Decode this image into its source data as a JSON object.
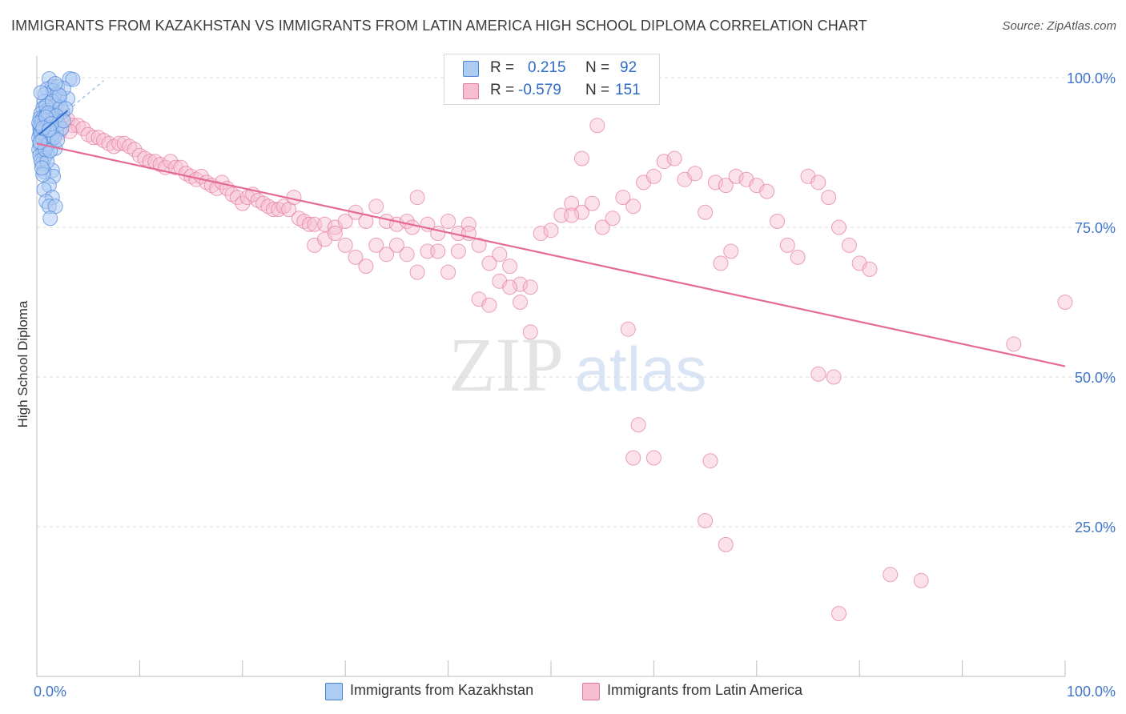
{
  "header": {
    "title": "IMMIGRANTS FROM KAZAKHSTAN VS IMMIGRANTS FROM LATIN AMERICA HIGH SCHOOL DIPLOMA CORRELATION CHART",
    "source": "Source: ZipAtlas.com"
  },
  "watermark": {
    "zip": "ZIP",
    "atlas": "atlas"
  },
  "legend": {
    "r_label": "R =",
    "n_label": "N =",
    "series": [
      {
        "name": "Immigrants from Kazakhstan",
        "r": "0.215",
        "n": "92",
        "fill": "#aecbf2",
        "stroke": "#4a86d8",
        "text_color": "#2e6cc7"
      },
      {
        "name": "Immigrants from Latin America",
        "r": "-0.579",
        "n": "151",
        "fill": "#f7bdd0",
        "stroke": "#e27aa0",
        "text_color": "#2e6cc7"
      }
    ]
  },
  "chart_data": {
    "type": "scatter",
    "title": "IMMIGRANTS FROM KAZAKHSTAN VS IMMIGRANTS FROM LATIN AMERICA HIGH SCHOOL DIPLOMA CORRELATION CHART",
    "xlabel": "",
    "ylabel": "High School Diploma",
    "xlim": [
      0,
      100
    ],
    "ylim": [
      0,
      100
    ],
    "x_tick_labels": [
      "0.0%",
      "100.0%"
    ],
    "y_tick_labels": [
      "100.0%",
      "75.0%",
      "50.0%",
      "25.0%"
    ],
    "y_ticks": [
      100,
      75,
      50,
      25
    ],
    "grid": true,
    "legend_placement": "top-center",
    "series": [
      {
        "name": "Immigrants from Kazakhstan",
        "color": "#4a86d8",
        "trend": {
          "x": [
            0.2,
            3.0
          ],
          "y": [
            90.5,
            94.5
          ]
        },
        "trend_ext": {
          "x": [
            3.0,
            6.5
          ],
          "y": [
            94.5,
            99.5
          ]
        },
        "points": [
          [
            1.2,
            99.8
          ],
          [
            3.2,
            99.8
          ],
          [
            3.5,
            99.7
          ],
          [
            1.5,
            98.5
          ],
          [
            2.0,
            98.5
          ],
          [
            1.0,
            98.1
          ],
          [
            1.6,
            97.8
          ],
          [
            0.8,
            97.2
          ],
          [
            2.0,
            97.3
          ],
          [
            2.2,
            96.4
          ],
          [
            3.0,
            96.5
          ],
          [
            0.7,
            96.0
          ],
          [
            1.2,
            95.7
          ],
          [
            1.8,
            95.3
          ],
          [
            0.6,
            94.9
          ],
          [
            1.0,
            94.5
          ],
          [
            2.5,
            94.3
          ],
          [
            0.4,
            94.0
          ],
          [
            0.8,
            93.6
          ],
          [
            1.3,
            93.8
          ],
          [
            0.3,
            93.2
          ],
          [
            0.6,
            92.7
          ],
          [
            1.1,
            92.9
          ],
          [
            1.7,
            92.6
          ],
          [
            0.3,
            92.1
          ],
          [
            0.8,
            92.0
          ],
          [
            1.4,
            91.8
          ],
          [
            0.3,
            91.5
          ],
          [
            0.6,
            91.1
          ],
          [
            1.0,
            90.9
          ],
          [
            1.9,
            91.0
          ],
          [
            0.3,
            90.6
          ],
          [
            0.7,
            90.3
          ],
          [
            1.2,
            90.1
          ],
          [
            0.2,
            89.9
          ],
          [
            0.5,
            89.5
          ],
          [
            0.9,
            89.2
          ],
          [
            1.4,
            89.4
          ],
          [
            0.3,
            88.8
          ],
          [
            0.7,
            88.5
          ],
          [
            1.8,
            88.2
          ],
          [
            0.2,
            88.0
          ],
          [
            0.6,
            87.6
          ],
          [
            1.0,
            87.3
          ],
          [
            0.3,
            87.0
          ],
          [
            0.7,
            86.5
          ],
          [
            0.5,
            85.6
          ],
          [
            1.5,
            84.5
          ],
          [
            0.7,
            84.3
          ],
          [
            1.6,
            83.5
          ],
          [
            1.2,
            82.0
          ],
          [
            0.7,
            81.3
          ],
          [
            1.5,
            80.0
          ],
          [
            0.9,
            79.3
          ],
          [
            1.2,
            78.5
          ],
          [
            1.8,
            78.5
          ],
          [
            1.3,
            76.5
          ],
          [
            0.4,
            97.5
          ],
          [
            2.6,
            98.2
          ],
          [
            0.9,
            95.2
          ],
          [
            1.5,
            96.0
          ],
          [
            2.3,
            95.0
          ],
          [
            0.5,
            93.0
          ],
          [
            1.6,
            93.2
          ],
          [
            0.4,
            91.9
          ],
          [
            0.9,
            91.7
          ],
          [
            2.1,
            92.2
          ],
          [
            0.4,
            90.9
          ],
          [
            1.5,
            90.6
          ],
          [
            0.6,
            89.8
          ],
          [
            1.1,
            88.9
          ],
          [
            0.4,
            86.2
          ],
          [
            1.0,
            86.0
          ],
          [
            0.6,
            83.8
          ],
          [
            2.2,
            97.0
          ],
          [
            1.8,
            99.0
          ],
          [
            2.8,
            94.8
          ],
          [
            1.1,
            94.1
          ],
          [
            0.2,
            92.4
          ],
          [
            1.9,
            93.6
          ],
          [
            2.4,
            91.5
          ],
          [
            0.8,
            88.0
          ],
          [
            1.3,
            87.8
          ],
          [
            0.5,
            84.9
          ],
          [
            2.6,
            92.8
          ],
          [
            1.7,
            90.0
          ],
          [
            0.3,
            89.2
          ],
          [
            0.9,
            93.4
          ],
          [
            1.4,
            92.3
          ],
          [
            2.0,
            89.6
          ],
          [
            0.6,
            91.6
          ],
          [
            1.2,
            91.3
          ]
        ]
      },
      {
        "name": "Immigrants from Latin America",
        "color": "#e27aa0",
        "trend": {
          "x": [
            0.0,
            100.0
          ],
          "y": [
            89.0,
            51.8
          ]
        },
        "points": [
          [
            0.7,
            93.0
          ],
          [
            1.0,
            92.0
          ],
          [
            1.5,
            92.5
          ],
          [
            2.0,
            94.0
          ],
          [
            2.5,
            93.5
          ],
          [
            3.0,
            93.0
          ],
          [
            3.5,
            92.0
          ],
          [
            4.0,
            92.0
          ],
          [
            4.5,
            91.5
          ],
          [
            1.3,
            91.0
          ],
          [
            2.2,
            90.8
          ],
          [
            3.2,
            91.0
          ],
          [
            5.0,
            90.5
          ],
          [
            5.5,
            90.0
          ],
          [
            6.0,
            90.0
          ],
          [
            6.5,
            89.5
          ],
          [
            7.0,
            89.0
          ],
          [
            7.5,
            88.5
          ],
          [
            8.0,
            89.0
          ],
          [
            8.5,
            89.0
          ],
          [
            9.0,
            88.5
          ],
          [
            9.5,
            88.0
          ],
          [
            10.0,
            87.0
          ],
          [
            10.5,
            86.5
          ],
          [
            11.0,
            86.0
          ],
          [
            11.5,
            86.0
          ],
          [
            12.0,
            85.5
          ],
          [
            12.5,
            85.0
          ],
          [
            13.0,
            86.0
          ],
          [
            13.5,
            85.0
          ],
          [
            14.0,
            85.0
          ],
          [
            14.5,
            84.0
          ],
          [
            15.0,
            83.5
          ],
          [
            15.5,
            83.0
          ],
          [
            16.0,
            83.5
          ],
          [
            16.5,
            82.5
          ],
          [
            17.0,
            82.0
          ],
          [
            17.5,
            81.5
          ],
          [
            18.0,
            82.5
          ],
          [
            18.5,
            81.5
          ],
          [
            19.0,
            80.5
          ],
          [
            19.5,
            80.0
          ],
          [
            20.0,
            79.0
          ],
          [
            20.5,
            80.0
          ],
          [
            21.0,
            80.5
          ],
          [
            21.5,
            79.5
          ],
          [
            22.0,
            79.0
          ],
          [
            22.5,
            78.5
          ],
          [
            23.0,
            78.0
          ],
          [
            23.5,
            78.0
          ],
          [
            24.0,
            78.5
          ],
          [
            24.5,
            78.0
          ],
          [
            25.0,
            80.0
          ],
          [
            25.5,
            76.5
          ],
          [
            26.0,
            76.0
          ],
          [
            26.5,
            75.5
          ],
          [
            27.0,
            75.5
          ],
          [
            28.0,
            75.5
          ],
          [
            29.0,
            75.0
          ],
          [
            30.0,
            76.0
          ],
          [
            31.0,
            77.5
          ],
          [
            32.0,
            76.0
          ],
          [
            33.0,
            78.5
          ],
          [
            34.0,
            76.0
          ],
          [
            35.0,
            75.5
          ],
          [
            36.0,
            76.0
          ],
          [
            37.0,
            80.0
          ],
          [
            36.5,
            75.0
          ],
          [
            38.0,
            75.5
          ],
          [
            39.0,
            74.0
          ],
          [
            40.0,
            76.0
          ],
          [
            41.0,
            74.0
          ],
          [
            42.0,
            75.5
          ],
          [
            27.0,
            72.0
          ],
          [
            28.0,
            73.0
          ],
          [
            29.0,
            74.0
          ],
          [
            30.0,
            72.0
          ],
          [
            31.0,
            70.0
          ],
          [
            32.0,
            68.5
          ],
          [
            33.0,
            72.0
          ],
          [
            34.0,
            70.5
          ],
          [
            35.0,
            72.0
          ],
          [
            36.0,
            70.5
          ],
          [
            37.0,
            67.5
          ],
          [
            38.0,
            71.0
          ],
          [
            39.0,
            71.0
          ],
          [
            40.0,
            67.5
          ],
          [
            41.0,
            71.0
          ],
          [
            42.0,
            74.0
          ],
          [
            43.0,
            72.0
          ],
          [
            44.0,
            69.0
          ],
          [
            45.0,
            70.5
          ],
          [
            46.0,
            68.5
          ],
          [
            47.0,
            65.5
          ],
          [
            48.0,
            65.0
          ],
          [
            49.0,
            74.0
          ],
          [
            50.0,
            74.5
          ],
          [
            51.0,
            77.0
          ],
          [
            52.0,
            79.0
          ],
          [
            53.0,
            77.5
          ],
          [
            54.0,
            79.0
          ],
          [
            55.0,
            75.0
          ],
          [
            56.0,
            76.5
          ],
          [
            57.0,
            80.0
          ],
          [
            58.0,
            78.5
          ],
          [
            59.0,
            82.5
          ],
          [
            60.0,
            83.5
          ],
          [
            61.0,
            86.0
          ],
          [
            62.0,
            86.5
          ],
          [
            63.0,
            83.0
          ],
          [
            64.0,
            84.0
          ],
          [
            65.0,
            77.5
          ],
          [
            66.0,
            82.5
          ],
          [
            67.0,
            82.0
          ],
          [
            68.0,
            83.5
          ],
          [
            69.0,
            83.0
          ],
          [
            70.0,
            82.0
          ],
          [
            71.0,
            81.0
          ],
          [
            72.0,
            76.0
          ],
          [
            73.0,
            72.0
          ],
          [
            74.0,
            70.0
          ],
          [
            75.0,
            83.5
          ],
          [
            76.0,
            82.5
          ],
          [
            77.0,
            80.0
          ],
          [
            78.0,
            75.0
          ],
          [
            79.0,
            72.0
          ],
          [
            80.0,
            69.0
          ],
          [
            81.0,
            68.0
          ],
          [
            43.0,
            63.0
          ],
          [
            44.0,
            62.0
          ],
          [
            45.0,
            66.0
          ],
          [
            46.0,
            65.0
          ],
          [
            47.0,
            62.5
          ],
          [
            48.0,
            57.5
          ],
          [
            52.0,
            77.0
          ],
          [
            53.0,
            86.5
          ],
          [
            54.5,
            92.0
          ],
          [
            57.5,
            58.0
          ],
          [
            58.5,
            42.0
          ],
          [
            58.0,
            36.5
          ],
          [
            60.0,
            36.5
          ],
          [
            65.0,
            26.0
          ],
          [
            65.5,
            36.0
          ],
          [
            67.0,
            22.0
          ],
          [
            76.0,
            50.5
          ],
          [
            77.5,
            50.0
          ],
          [
            83.0,
            17.0
          ],
          [
            86.0,
            16.0
          ],
          [
            78.0,
            10.5
          ],
          [
            95.0,
            55.5
          ],
          [
            100.0,
            62.5
          ],
          [
            66.5,
            69.0
          ],
          [
            67.5,
            71.0
          ]
        ]
      }
    ]
  }
}
